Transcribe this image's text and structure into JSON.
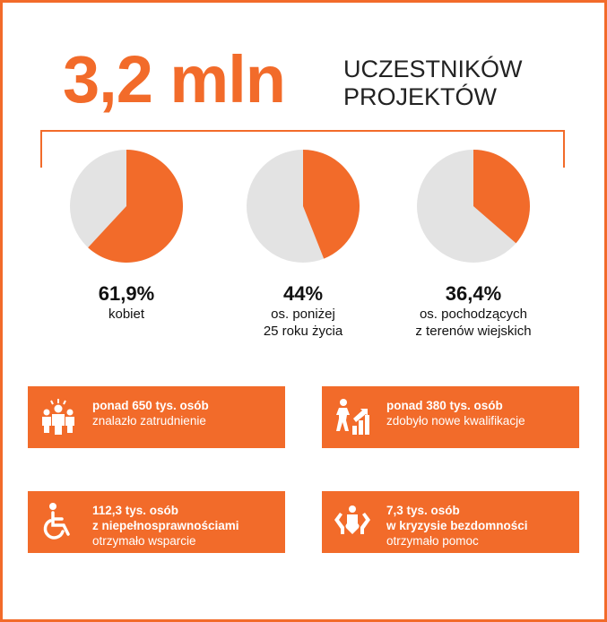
{
  "header": {
    "big_number": "3,2 mln",
    "title_line1": "UCZESTNIKÓW",
    "title_line2": "PROJEKTÓW"
  },
  "colors": {
    "accent": "#f26b2a",
    "pie_rest": "#e3e3e3"
  },
  "chart_data": [
    {
      "type": "pie",
      "value": 61.9,
      "label": "61,9%",
      "caption": [
        "kobiet"
      ]
    },
    {
      "type": "pie",
      "value": 44.0,
      "label": "44%",
      "caption": [
        "os. poniżej",
        "25 roku życia"
      ]
    },
    {
      "type": "pie",
      "value": 36.4,
      "label": "36,4%",
      "caption": [
        "os. pochodzących",
        "z terenów wiejskich"
      ]
    }
  ],
  "cards": [
    {
      "icon": "people-group-icon",
      "line1": "ponad 650 tys. osób",
      "line2": "znalazło zatrudnienie",
      "line3": ""
    },
    {
      "icon": "stairs-growth-icon",
      "line1": "ponad 380 tys. osób",
      "line2": "zdobyło nowe kwalifikacje",
      "line3": ""
    },
    {
      "icon": "wheelchair-icon",
      "line1": "112,3 tys. osób",
      "line2": "z niepełnosprawnościami",
      "line3": "otrzymało wsparcie"
    },
    {
      "icon": "helping-hands-icon",
      "line1": "7,3 tys. osób",
      "line2": "w kryzysie bezdomności",
      "line3": "otrzymało pomoc"
    }
  ]
}
